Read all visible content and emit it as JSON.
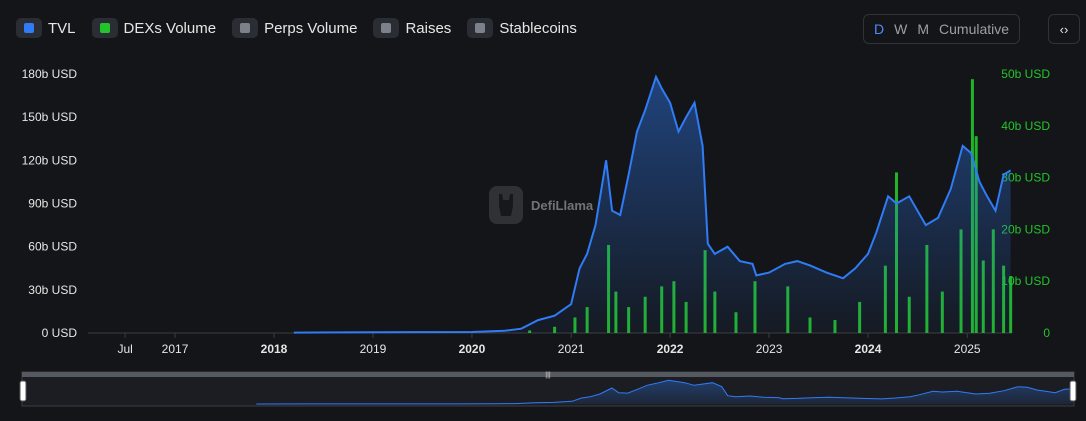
{
  "legend": [
    {
      "label": "TVL",
      "color": "#2f7cf6",
      "active": true
    },
    {
      "label": "DEXs Volume",
      "color": "#22c42b",
      "active": true
    },
    {
      "label": "Perps Volume",
      "color": "#7d828a",
      "active": false
    },
    {
      "label": "Raises",
      "color": "#7d828a",
      "active": false
    },
    {
      "label": "Stablecoins",
      "color": "#7d828a",
      "active": false
    }
  ],
  "controls": {
    "daily": "D",
    "weekly": "W",
    "monthly": "M",
    "cumulative": "Cumulative",
    "active": "D",
    "embed_icon": "code-icon"
  },
  "watermark": {
    "text": "DefiLlama"
  },
  "chart_data": {
    "type": "area",
    "title": "",
    "grid": false,
    "legend_position": "top-left",
    "x_ticks": [
      {
        "label": "Jul",
        "date": "2016-07-01",
        "bold": false
      },
      {
        "label": "2017",
        "date": "2017-01-01",
        "bold": false
      },
      {
        "label": "2018",
        "date": "2018-01-01",
        "bold": true
      },
      {
        "label": "2019",
        "date": "2019-01-01",
        "bold": false
      },
      {
        "label": "2020",
        "date": "2020-01-01",
        "bold": true
      },
      {
        "label": "2021",
        "date": "2021-01-01",
        "bold": false
      },
      {
        "label": "2022",
        "date": "2022-01-01",
        "bold": true
      },
      {
        "label": "2023",
        "date": "2023-01-01",
        "bold": false
      },
      {
        "label": "2024",
        "date": "2024-01-01",
        "bold": true
      },
      {
        "label": "2025",
        "date": "2025-01-01",
        "bold": false
      }
    ],
    "xlim": [
      "2016-02-15",
      "2025-06-15"
    ],
    "y_left": {
      "ticks": [
        "0 USD",
        "30b USD",
        "60b USD",
        "90b USD",
        "120b USD",
        "150b USD",
        "180b USD"
      ],
      "range": [
        0,
        180
      ],
      "unit": "b USD"
    },
    "y_right": {
      "ticks": [
        "0",
        "10b USD",
        "20b USD",
        "30b USD",
        "40b USD",
        "50b USD"
      ],
      "range": [
        0,
        50
      ],
      "unit": "b USD",
      "color": "#22c42b"
    },
    "series": [
      {
        "name": "TVL",
        "axis": "left",
        "color": "#2f7cf6",
        "points": [
          [
            "2018-03-15",
            0.3
          ],
          [
            "2018-09-01",
            0.4
          ],
          [
            "2019-01-01",
            0.5
          ],
          [
            "2019-06-01",
            0.6
          ],
          [
            "2020-01-01",
            0.7
          ],
          [
            "2020-05-01",
            1.5
          ],
          [
            "2020-07-01",
            3
          ],
          [
            "2020-09-01",
            9
          ],
          [
            "2020-11-01",
            12
          ],
          [
            "2021-01-01",
            20
          ],
          [
            "2021-02-01",
            45
          ],
          [
            "2021-03-01",
            55
          ],
          [
            "2021-04-01",
            75
          ],
          [
            "2021-05-10",
            120
          ],
          [
            "2021-06-01",
            85
          ],
          [
            "2021-07-01",
            82
          ],
          [
            "2021-08-01",
            110
          ],
          [
            "2021-09-01",
            140
          ],
          [
            "2021-10-01",
            155
          ],
          [
            "2021-11-10",
            178
          ],
          [
            "2021-12-01",
            170
          ],
          [
            "2022-01-01",
            160
          ],
          [
            "2022-02-01",
            140
          ],
          [
            "2022-03-01",
            150
          ],
          [
            "2022-04-01",
            160
          ],
          [
            "2022-05-01",
            130
          ],
          [
            "2022-05-20",
            62
          ],
          [
            "2022-06-15",
            55
          ],
          [
            "2022-08-01",
            60
          ],
          [
            "2022-09-15",
            50
          ],
          [
            "2022-11-01",
            48
          ],
          [
            "2022-11-15",
            40
          ],
          [
            "2023-01-01",
            42
          ],
          [
            "2023-03-01",
            48
          ],
          [
            "2023-04-15",
            50
          ],
          [
            "2023-06-01",
            47
          ],
          [
            "2023-08-01",
            42
          ],
          [
            "2023-10-01",
            38
          ],
          [
            "2023-11-15",
            45
          ],
          [
            "2024-01-01",
            55
          ],
          [
            "2024-02-01",
            70
          ],
          [
            "2024-03-15",
            95
          ],
          [
            "2024-04-15",
            90
          ],
          [
            "2024-06-01",
            95
          ],
          [
            "2024-08-01",
            75
          ],
          [
            "2024-09-15",
            80
          ],
          [
            "2024-11-01",
            100
          ],
          [
            "2024-12-15",
            130
          ],
          [
            "2025-01-15",
            125
          ],
          [
            "2025-02-15",
            105
          ],
          [
            "2025-03-15",
            95
          ],
          [
            "2025-04-15",
            85
          ],
          [
            "2025-05-15",
            110
          ],
          [
            "2025-06-10",
            113
          ]
        ]
      },
      {
        "name": "DEXs Volume",
        "axis": "right",
        "color": "#22c42b",
        "type": "bar",
        "points": [
          [
            "2020-08-01",
            0.5
          ],
          [
            "2020-11-01",
            1.2
          ],
          [
            "2021-01-15",
            3
          ],
          [
            "2021-03-01",
            5
          ],
          [
            "2021-05-19",
            17
          ],
          [
            "2021-06-15",
            8
          ],
          [
            "2021-08-01",
            5
          ],
          [
            "2021-10-01",
            7
          ],
          [
            "2021-12-01",
            9
          ],
          [
            "2022-01-15",
            10
          ],
          [
            "2022-03-01",
            6
          ],
          [
            "2022-05-10",
            16
          ],
          [
            "2022-06-15",
            8
          ],
          [
            "2022-09-01",
            4
          ],
          [
            "2022-11-10",
            10
          ],
          [
            "2023-03-11",
            9
          ],
          [
            "2023-06-01",
            3
          ],
          [
            "2023-09-01",
            2.5
          ],
          [
            "2023-12-01",
            6
          ],
          [
            "2024-03-05",
            13
          ],
          [
            "2024-04-15",
            31
          ],
          [
            "2024-06-01",
            7
          ],
          [
            "2024-08-05",
            17
          ],
          [
            "2024-10-01",
            8
          ],
          [
            "2024-12-09",
            20
          ],
          [
            "2025-01-20",
            49
          ],
          [
            "2025-02-03",
            38
          ],
          [
            "2025-03-01",
            14
          ],
          [
            "2025-04-07",
            20
          ],
          [
            "2025-05-15",
            13
          ],
          [
            "2025-06-10",
            11
          ]
        ]
      }
    ]
  }
}
